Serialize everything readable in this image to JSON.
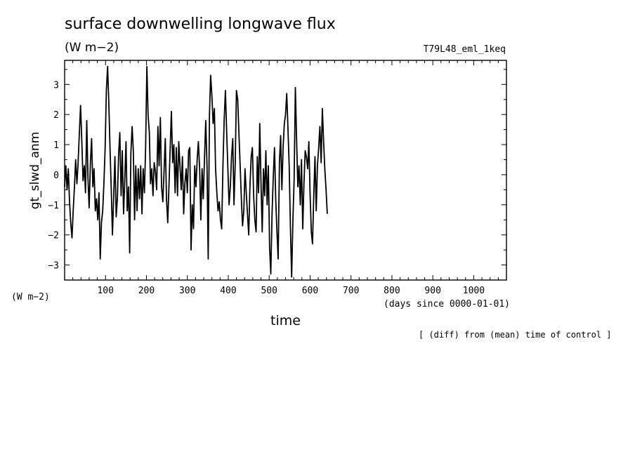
{
  "chart_data": {
    "type": "line",
    "title": "surface downwelling longwave flux",
    "subtitle": "(W m−2)",
    "run_label": "T79L48_eml_1keq",
    "ylabel": "gt_slwd_anm",
    "y_units": "(W m−2)",
    "xlabel": "time",
    "x_units": "(days since 0000-01-01)",
    "note": "[ (diff) from (mean) time of control ]",
    "xlim": [
      0,
      1080
    ],
    "ylim": [
      -3.5,
      3.8
    ],
    "x_ticks": [
      100,
      200,
      300,
      400,
      500,
      600,
      700,
      800,
      900,
      1000
    ],
    "y_ticks": [
      3,
      2,
      1,
      0,
      -1,
      -2,
      -3
    ],
    "y_tick_labels": [
      "3",
      "2",
      "1",
      "0",
      "−1",
      "−2",
      "−3"
    ],
    "grid": false,
    "x_step": 3,
    "series": [
      {
        "color": "#000000",
        "values": [
          -0.4,
          0.3,
          -0.5,
          0.2,
          -0.9,
          -1.6,
          -2.1,
          -1.2,
          -0.4,
          0.5,
          -0.3,
          0.4,
          1.4,
          2.3,
          1.1,
          -0.2,
          0.3,
          -0.6,
          1.8,
          -0.1,
          -1.1,
          0.4,
          1.2,
          -0.4,
          0.2,
          -1.2,
          -0.8,
          -1.5,
          -0.6,
          -2.8,
          -1.6,
          -1.2,
          -0.3,
          0.9,
          2.8,
          3.6,
          2.4,
          0.9,
          -0.5,
          -2.0,
          -0.7,
          0.6,
          -1.4,
          -0.8,
          0.7,
          1.4,
          -0.7,
          0.8,
          -1.3,
          -0.2,
          1.1,
          -1.2,
          -0.4,
          -2.6,
          0.7,
          1.6,
          0.8,
          -1.5,
          0.3,
          -1.2,
          0.2,
          -0.8,
          0.3,
          -1.3,
          0.2,
          -0.6,
          0.9,
          3.6,
          2.0,
          1.4,
          -0.3,
          0.2,
          -0.7,
          0.4,
          0.1,
          -0.5,
          1.6,
          0.3,
          1.9,
          -0.4,
          -0.9,
          0.1,
          1.2,
          -0.8,
          -1.6,
          -0.4,
          0.9,
          2.1,
          0.4,
          1.0,
          -0.6,
          0.9,
          -0.7,
          1.1,
          0.3,
          -0.5,
          0.6,
          -1.3,
          -0.3,
          0.2,
          -0.6,
          0.8,
          0.9,
          -2.5,
          -1.0,
          -1.8,
          0.3,
          -0.4,
          0.5,
          1.1,
          0.2,
          -1.5,
          0.2,
          -0.8,
          0.6,
          1.8,
          0.3,
          -2.8,
          2.0,
          3.3,
          2.6,
          1.7,
          2.2,
          0.2,
          -0.6,
          -1.2,
          -0.9,
          -1.5,
          -1.8,
          0.3,
          1.8,
          2.8,
          1.5,
          0.2,
          -1.0,
          -0.4,
          0.6,
          1.2,
          -1.0,
          0.4,
          2.8,
          2.5,
          1.4,
          0.3,
          -0.8,
          -1.7,
          -1.2,
          0.2,
          -0.6,
          -1.3,
          -2.0,
          -0.4,
          0.6,
          0.9,
          -0.7,
          -1.5,
          -1.9,
          0.6,
          -0.6,
          1.7,
          -0.3,
          -1.9,
          0.2,
          -0.7,
          0.8,
          -1.0,
          0.3,
          -2.4,
          -3.3,
          -1.3,
          -0.1,
          0.9,
          -0.8,
          -1.9,
          -2.8,
          0.4,
          1.3,
          -0.5,
          0.9,
          1.7,
          2.0,
          2.7,
          1.5,
          0.3,
          -1.8,
          -3.4,
          -1.5,
          -0.2,
          2.9,
          1.2,
          -0.4,
          0.3,
          -1.0,
          0.5,
          -1.8,
          -0.3,
          0.8,
          0.6,
          0.2,
          1.1,
          -0.6,
          -1.9,
          -2.3,
          -0.7,
          0.6,
          -1.2,
          0.3,
          0.9,
          1.6,
          0.4,
          2.2,
          1.1,
          0.2,
          -0.5,
          -1.3
        ]
      }
    ]
  }
}
